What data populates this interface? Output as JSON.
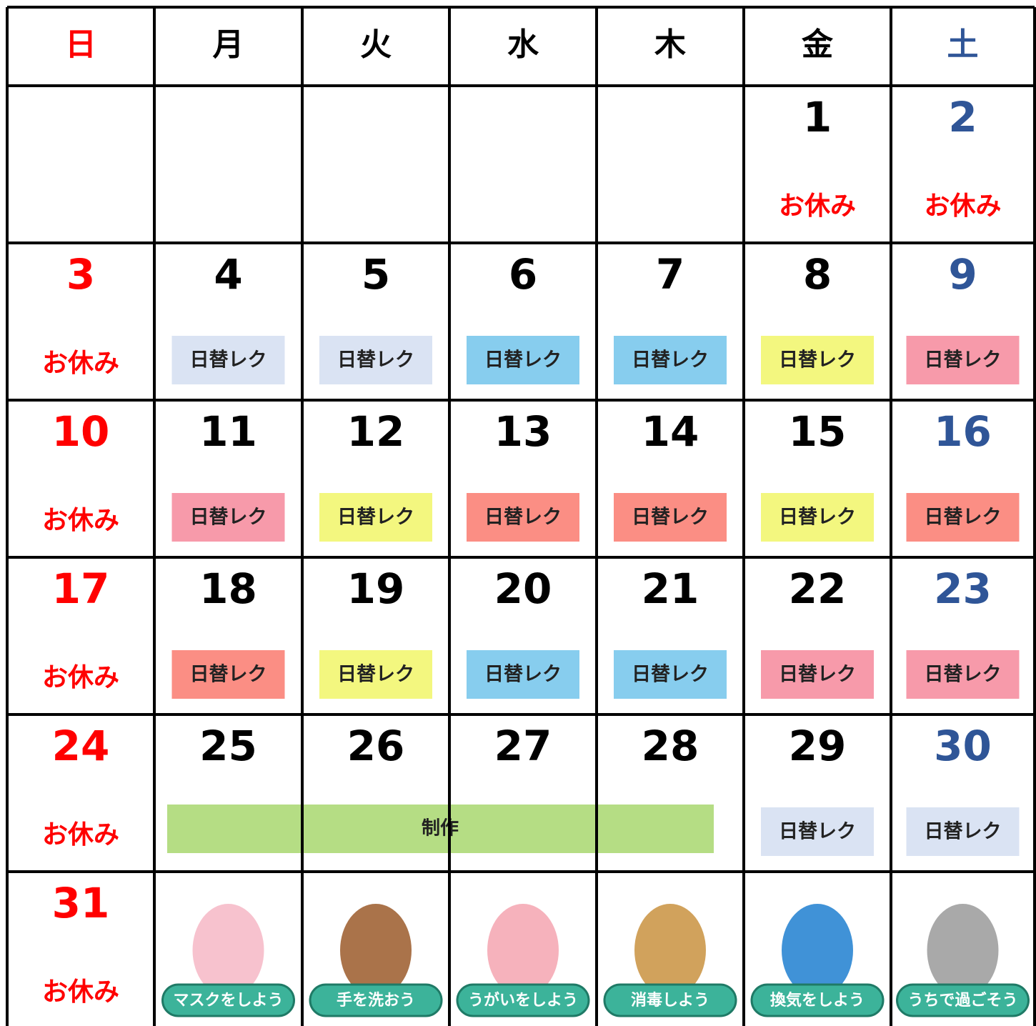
{
  "header": {
    "days": [
      {
        "label": "日",
        "color": "#ff0000"
      },
      {
        "label": "月",
        "color": "#000000"
      },
      {
        "label": "火",
        "color": "#000000"
      },
      {
        "label": "水",
        "color": "#000000"
      },
      {
        "label": "木",
        "color": "#000000"
      },
      {
        "label": "金",
        "color": "#000000"
      },
      {
        "label": "土",
        "color": "#2f5597"
      }
    ]
  },
  "weeks": [
    {
      "cells": [
        {},
        {},
        {},
        {},
        {},
        {
          "day": 1,
          "note": "お休み"
        },
        {
          "day": 2,
          "note": "お休み"
        }
      ]
    },
    {
      "cells": [
        {
          "day": 3,
          "note": "お休み"
        },
        {
          "day": 4,
          "event": {
            "label": "日替レク",
            "color": "#dae3f3"
          }
        },
        {
          "day": 5,
          "event": {
            "label": "日替レク",
            "color": "#dae3f3"
          }
        },
        {
          "day": 6,
          "event": {
            "label": "日替レク",
            "color": "#87cdee"
          }
        },
        {
          "day": 7,
          "event": {
            "label": "日替レク",
            "color": "#87cdee"
          }
        },
        {
          "day": 8,
          "event": {
            "label": "日替レク",
            "color": "#f3f77f"
          }
        },
        {
          "day": 9,
          "event": {
            "label": "日替レク",
            "color": "#f79aaa"
          }
        }
      ]
    },
    {
      "cells": [
        {
          "day": 10,
          "note": "お休み"
        },
        {
          "day": 11,
          "event": {
            "label": "日替レク",
            "color": "#f79aaa"
          }
        },
        {
          "day": 12,
          "event": {
            "label": "日替レク",
            "color": "#f3f77f"
          }
        },
        {
          "day": 13,
          "event": {
            "label": "日替レク",
            "color": "#fb8e84"
          }
        },
        {
          "day": 14,
          "event": {
            "label": "日替レク",
            "color": "#fb8e84"
          }
        },
        {
          "day": 15,
          "event": {
            "label": "日替レク",
            "color": "#f3f77f"
          }
        },
        {
          "day": 16,
          "event": {
            "label": "日替レク",
            "color": "#fb8e84"
          }
        }
      ]
    },
    {
      "cells": [
        {
          "day": 17,
          "note": "お休み"
        },
        {
          "day": 18,
          "event": {
            "label": "日替レク",
            "color": "#fb8e84"
          }
        },
        {
          "day": 19,
          "event": {
            "label": "日替レク",
            "color": "#f3f77f"
          }
        },
        {
          "day": 20,
          "event": {
            "label": "日替レク",
            "color": "#87cdee"
          }
        },
        {
          "day": 21,
          "event": {
            "label": "日替レク",
            "color": "#87cdee"
          }
        },
        {
          "day": 22,
          "event": {
            "label": "日替レク",
            "color": "#f79aaa"
          }
        },
        {
          "day": 23,
          "event": {
            "label": "日替レク",
            "color": "#f79aaa"
          }
        }
      ]
    },
    {
      "banner": {
        "label": "制作",
        "color": "#b5dd84"
      },
      "cells": [
        {
          "day": 24,
          "note": "お休み"
        },
        {
          "day": 25
        },
        {
          "day": 26
        },
        {
          "day": 27
        },
        {
          "day": 28
        },
        {
          "day": 29,
          "event": {
            "label": "日替レク",
            "color": "#dae3f3"
          }
        },
        {
          "day": 30,
          "event": {
            "label": "日替レク",
            "color": "#dae3f3"
          }
        }
      ]
    },
    {
      "cells": [
        {
          "day": 31,
          "note": "お休み"
        },
        {
          "caption": "マスクをしよう"
        },
        {
          "caption": "手を洗おう"
        },
        {
          "caption": "うがいをしよう"
        },
        {
          "caption": "消毒しよう"
        },
        {
          "caption": "換気をしよう"
        },
        {
          "caption": "うちで過ごそう"
        }
      ]
    }
  ]
}
